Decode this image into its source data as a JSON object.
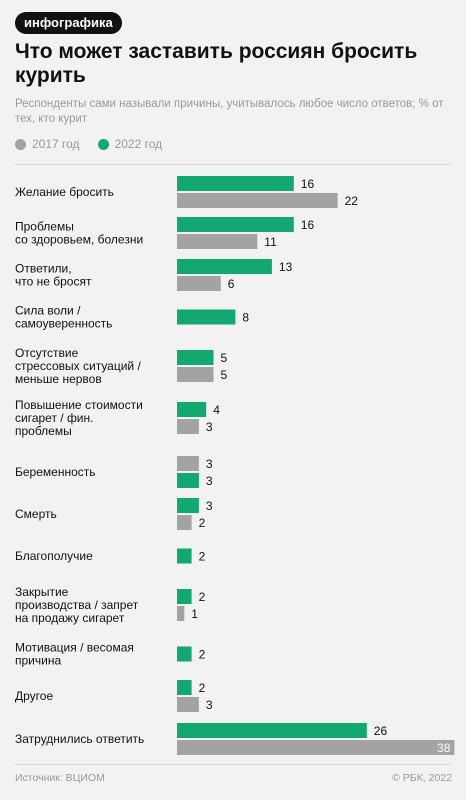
{
  "tag": "инфографика",
  "title": "Что может заставить россиян бросить курить",
  "subtitle": "Респонденты сами называли причины, учитывалось любое число ответов; % от тех, кто курит",
  "colors": {
    "y2017": "#a3a3a3",
    "y2022": "#12a870"
  },
  "footer": {
    "source": "Источник: ВЦИОМ",
    "copyright": "© РБК, 2022"
  },
  "chart_data": {
    "type": "bar",
    "orientation": "horizontal",
    "unit": "%",
    "categories": [
      [
        "Желание бросить"
      ],
      [
        "Проблемы",
        "со здоровьем, болезни"
      ],
      [
        "Ответили,",
        "что не бросят"
      ],
      [
        "Сила воли /",
        "самоуверенность"
      ],
      [
        "Отсутствие",
        "стрессовых ситуаций /",
        "меньше нервов"
      ],
      [
        "Повышение стоимости",
        "сигарет / фин.",
        "проблемы"
      ],
      [
        "Беременность"
      ],
      [
        "Смерть"
      ],
      [
        "Благополучие"
      ],
      [
        "Закрытие",
        "производства / запрет",
        "на продажу сигарет"
      ],
      [
        "Мотивация / весомая",
        "причина"
      ],
      [
        "Другое"
      ],
      [
        "Затруднились ответить"
      ]
    ],
    "series": [
      {
        "name": "2017 год",
        "values": [
          22,
          11,
          6,
          null,
          5,
          3,
          3,
          2,
          null,
          1,
          null,
          3,
          38
        ]
      },
      {
        "name": "2022 год",
        "values": [
          16,
          16,
          13,
          8,
          5,
          4,
          3,
          3,
          2,
          2,
          2,
          2,
          26
        ]
      }
    ],
    "bar_order": [
      [
        "2022",
        "2017"
      ],
      [
        "2022",
        "2017"
      ],
      [
        "2022",
        "2017"
      ],
      [
        "2022"
      ],
      [
        "2022",
        "2017"
      ],
      [
        "2022",
        "2017"
      ],
      [
        "2017",
        "2022"
      ],
      [
        "2022",
        "2017"
      ],
      [
        "2022"
      ],
      [
        "2022",
        "2017"
      ],
      [
        "2022"
      ],
      [
        "2022",
        "2017"
      ],
      [
        "2022",
        "2017"
      ]
    ]
  }
}
